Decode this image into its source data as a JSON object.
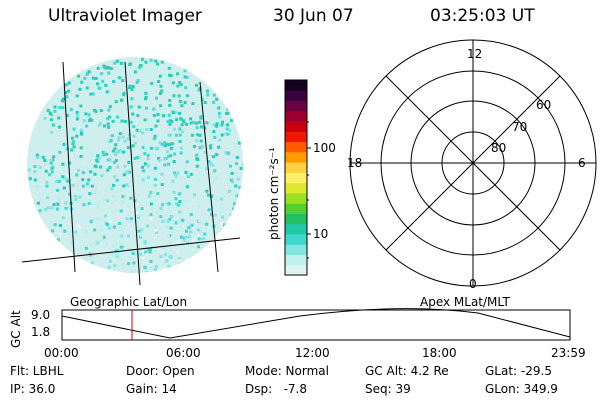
{
  "header": {
    "instrument": "Ultraviolet Imager",
    "date": "30 Jun 07",
    "time": "03:25:03 UT"
  },
  "colorbar": {
    "label": "photon cm⁻²s⁻¹",
    "ticks": [
      "100",
      "10"
    ],
    "colors": [
      "#dff3f3",
      "#bff0ee",
      "#7fe6e2",
      "#3fd8cf",
      "#22c8a8",
      "#22c060",
      "#55d030",
      "#9de022",
      "#dde830",
      "#ffee66",
      "#ffd040",
      "#ff9a00",
      "#ff5a00",
      "#ee1a00",
      "#c80010",
      "#9a0030",
      "#6a0040",
      "#3a0040",
      "#150020"
    ]
  },
  "polar_plot": {
    "mlt_labels": [
      "12",
      "18",
      "6",
      "0"
    ],
    "lat_labels": [
      "60",
      "70",
      "80"
    ]
  },
  "map_labels": {
    "left": "Geographic Lat/Lon",
    "right": "Apex MLat/MLT"
  },
  "altitude_panel": {
    "ylabel": "GC Alt",
    "yticks": [
      "9.0",
      "1.8"
    ],
    "xticks": [
      "00:00",
      "06:00",
      "12:00",
      "18:00",
      "23:59"
    ],
    "marker_color": "#cc0000"
  },
  "info": {
    "flt": "Flt: LBHL",
    "door": "Door: Open",
    "mode": "Mode: Normal",
    "gc_alt": "GC Alt: 4.2 Re",
    "glat": "GLat: -29.5",
    "ip": "IP: 36.0",
    "gain": "Gain: 14",
    "dsp": "Dsp:   -7.8",
    "seq": "Seq: 39",
    "glon": "GLon: 349.9"
  }
}
